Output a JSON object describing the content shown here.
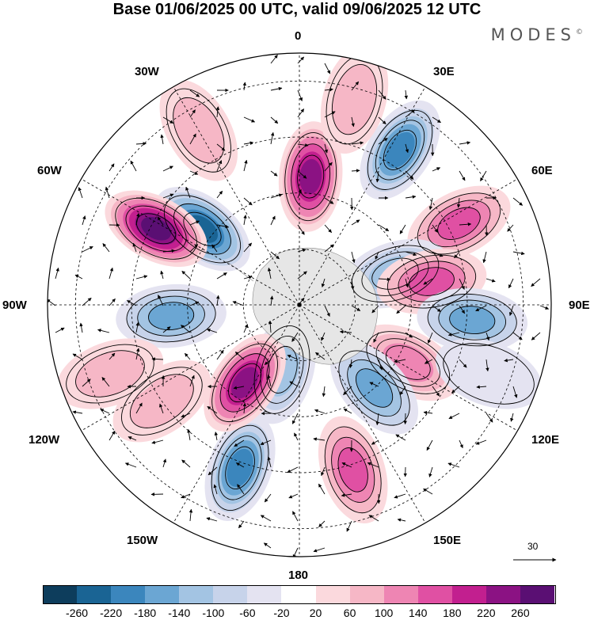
{
  "title": "Base 01/06/2025 00 UTC, valid 09/06/2025 12 UTC",
  "brand": "MODES",
  "brand_mark": "©",
  "longitude_labels": {
    "lon_0": "0",
    "lon_30e": "30E",
    "lon_60e": "60E",
    "lon_90e": "90E",
    "lon_120e": "120E",
    "lon_150e": "150E",
    "lon_180": "180",
    "lon_150w": "150W",
    "lon_120w": "120W",
    "lon_90w": "90W",
    "lon_60w": "60W",
    "lon_30w": "30W"
  },
  "reference_vector": {
    "label": "30"
  },
  "colorbar": {
    "tick_labels": [
      "-260",
      "-220",
      "-180",
      "-140",
      "-100",
      "-60",
      "-20",
      "20",
      "60",
      "100",
      "140",
      "180",
      "220",
      "260"
    ],
    "colors": [
      "#0d3d5c",
      "#1a6494",
      "#3b86bd",
      "#6ba6d3",
      "#a3c4e3",
      "#c7d3ea",
      "#e4e3f1",
      "#ffffff",
      "#fbd9dd",
      "#f6b7c6",
      "#ee85b3",
      "#e050a3",
      "#c21f8f",
      "#8b1283",
      "#5a0f73"
    ]
  },
  "anomaly_centers": [
    {
      "lon": -52,
      "colat": 22,
      "value": -230
    },
    {
      "lon": 5,
      "colat": 23,
      "value": 220
    },
    {
      "lon": 33,
      "colat": 33,
      "value": -200
    },
    {
      "lon": 63,
      "colat": 32,
      "value": 160
    },
    {
      "lon": 72,
      "colat": 18,
      "value": -120
    },
    {
      "lon": 80,
      "colat": 24,
      "value": 140
    },
    {
      "lon": 95,
      "colat": 31,
      "value": -160
    },
    {
      "lon": 118,
      "colat": 22,
      "value": 120
    },
    {
      "lon": 138,
      "colat": 20,
      "value": -150
    },
    {
      "lon": 162,
      "colat": 31,
      "value": 140
    },
    {
      "lon": -165,
      "colat": 12,
      "value": -110
    },
    {
      "lon": -160,
      "colat": 31,
      "value": -180
    },
    {
      "lon": -145,
      "colat": 17,
      "value": 220
    },
    {
      "lon": -125,
      "colat": 30,
      "value": 70
    },
    {
      "lon": -95,
      "colat": 23,
      "value": -170
    },
    {
      "lon": -62,
      "colat": 29,
      "value": 260
    },
    {
      "lon": -30,
      "colat": 36,
      "value": 70
    },
    {
      "lon": 15,
      "colat": 38,
      "value": 60
    },
    {
      "lon": 110,
      "colat": 36,
      "value": -40
    },
    {
      "lon": -110,
      "colat": 36,
      "value": 60
    }
  ]
}
